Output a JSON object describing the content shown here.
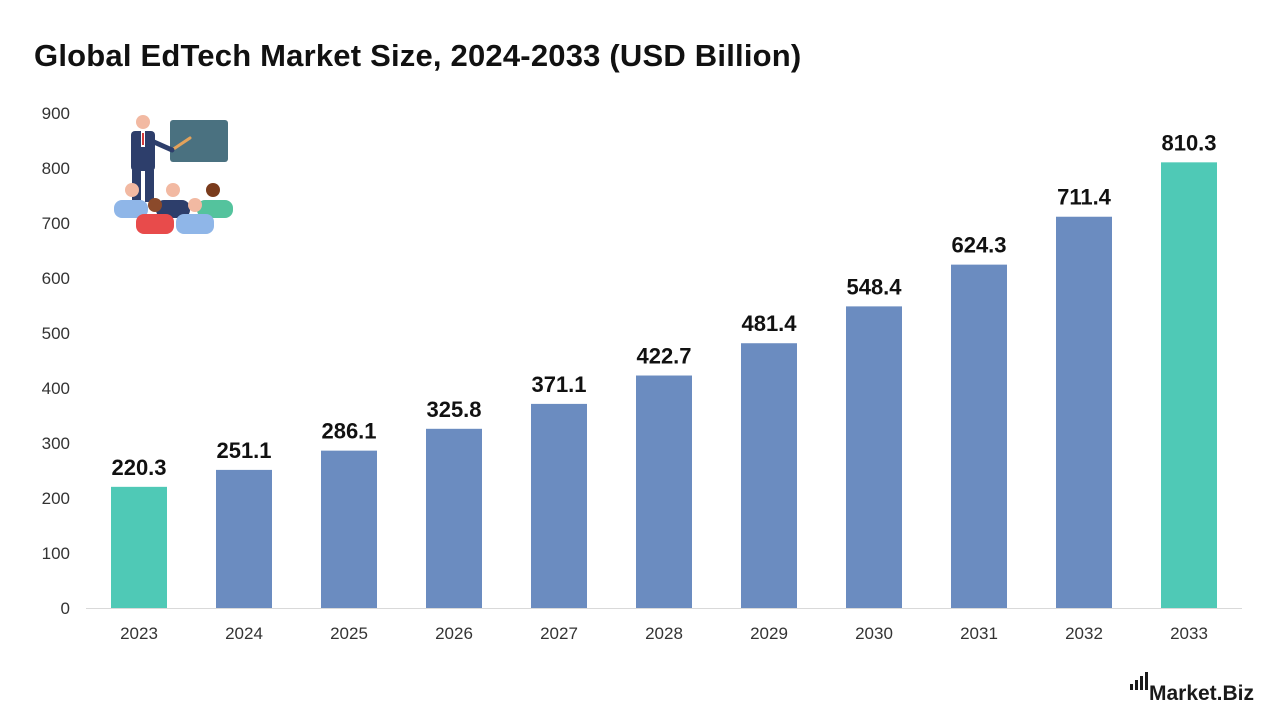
{
  "chart_data": {
    "type": "bar",
    "title": "Global EdTech Market Size, 2024-2033 (USD Billion)",
    "categories": [
      "2023",
      "2024",
      "2025",
      "2026",
      "2027",
      "2028",
      "2029",
      "2030",
      "2031",
      "2032",
      "2033"
    ],
    "values": [
      220.3,
      251.1,
      286.1,
      325.8,
      371.1,
      422.7,
      481.4,
      548.4,
      624.3,
      711.4,
      810.3
    ],
    "value_labels": [
      "220.3",
      "251.1",
      "286.1",
      "325.8",
      "371.1",
      "422.7",
      "481.4",
      "548.4",
      "624.3",
      "711.4",
      "810.3"
    ],
    "highlight_indices": [
      0,
      10
    ],
    "ylim": [
      0,
      900
    ],
    "yticks": [
      0,
      100,
      200,
      300,
      400,
      500,
      600,
      700,
      800,
      900
    ],
    "xlabel": "",
    "ylabel": "",
    "grid": false,
    "colors": {
      "bar": "#6b8cc0",
      "highlight": "#4fc9b6",
      "axis": "#d9d9d9",
      "label": "#111111",
      "tick": "#333333"
    }
  },
  "branding": {
    "logo_text": "Market.Biz"
  },
  "illustration": {
    "icon": "classroom-teacher-icon"
  }
}
